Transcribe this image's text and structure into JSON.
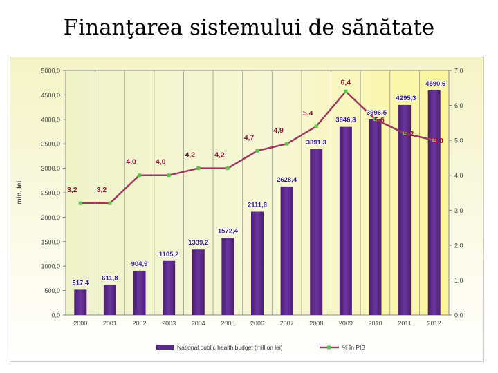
{
  "page": {
    "title": "Finanţarea sistemului de sănătate"
  },
  "chart_data": {
    "type": "bar",
    "categories": [
      "2000",
      "2001",
      "2002",
      "2003",
      "2004",
      "2005",
      "2006",
      "2007",
      "2008",
      "2009",
      "2010",
      "2011",
      "2012"
    ],
    "series": [
      {
        "name": "National public health budget (million lei)",
        "type": "bar",
        "axis": "left",
        "color": "#5b2a86",
        "values": [
          517.4,
          611.8,
          904.9,
          1105.2,
          1339.2,
          1572.4,
          2111.8,
          2628.4,
          3391.3,
          3846.8,
          3996.5,
          4295.3,
          4590.6
        ],
        "labels": [
          "517,4",
          "611,8",
          "904,9",
          "1105,2",
          "1339,2",
          "1572,4",
          "2111,8",
          "2628,4",
          "3391,3",
          "3846,8",
          "3996,5",
          "4295,3",
          "4590,6"
        ]
      },
      {
        "name": "% în PIB",
        "type": "line",
        "axis": "right",
        "color": "#9b3a5c",
        "marker_color": "#5cc44a",
        "values": [
          3.2,
          3.2,
          4.0,
          4.0,
          4.2,
          4.2,
          4.7,
          4.9,
          5.4,
          6.4,
          5.6,
          5.2,
          5.0
        ],
        "labels": [
          "3,2",
          "3,2",
          "4,0",
          "4,0",
          "4,2",
          "4,2",
          "4,7",
          "4,9",
          "5,4",
          "6,4",
          "5,6",
          "5,2",
          "5,0"
        ]
      }
    ],
    "ylabel": "mln. lei",
    "ylim": [
      0,
      5000
    ],
    "yticks": [
      "0,0",
      "500,0",
      "1000,0",
      "1500,0",
      "2000,0",
      "2500,0",
      "3000,0",
      "3500,0",
      "4000,0",
      "4500,0",
      "5000,0"
    ],
    "y2lim": [
      0,
      7
    ],
    "y2ticks": [
      "0,0",
      "1,0",
      "2,0",
      "3,0",
      "4,0",
      "5,0",
      "6,0",
      "7,0"
    ],
    "grid": true,
    "legend_position": "bottom",
    "colors": {
      "label": "#8b1a3a",
      "axis_text": "#444444"
    }
  }
}
